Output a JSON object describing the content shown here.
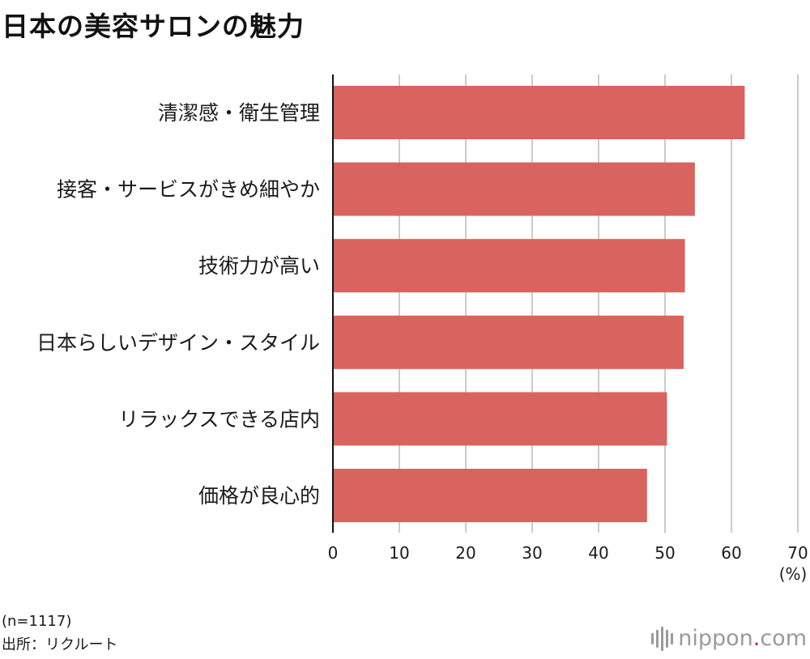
{
  "title": "日本の美容サロンの魅力",
  "chart_data": {
    "type": "bar",
    "orientation": "horizontal",
    "categories": [
      "清潔感・衛生管理",
      "接客・サービスがきめ細やか",
      "技術力が高い",
      "日本らしいデザイン・スタイル",
      "リラックスできる店内",
      "価格が良心的"
    ],
    "values": [
      62,
      54.5,
      53,
      52.8,
      50.3,
      47.3
    ],
    "xlim": [
      0,
      70
    ],
    "xticks": [
      0,
      10,
      20,
      30,
      40,
      50,
      60,
      70
    ],
    "xlabel": "(%)",
    "grid": true,
    "bar_color": "#d9645f"
  },
  "footnotes": {
    "sample": "(n=1117)",
    "source": "出所：リクルート"
  },
  "logo": {
    "name": "nippon",
    "dot": ".",
    "suffix": "com",
    "accent": "#c9202f"
  }
}
